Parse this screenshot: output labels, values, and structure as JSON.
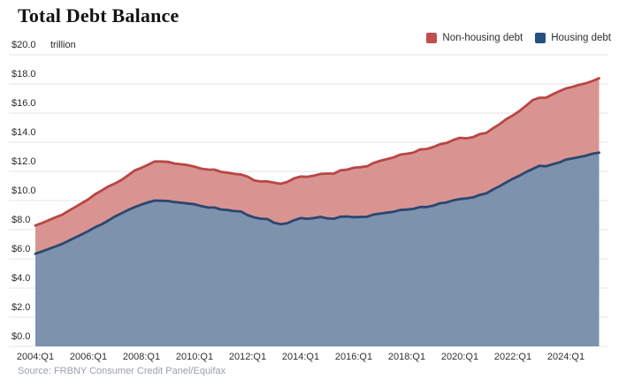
{
  "title": "Total Debt Balance",
  "legend": {
    "items": [
      {
        "label": "Non-housing debt",
        "color": "#c0504d"
      },
      {
        "label": "Housing debt",
        "color": "#27507f"
      }
    ]
  },
  "source": "Source: FRBNY Consumer Credit Panel/Equifax",
  "y_axis": {
    "unit_label": "trillion",
    "min": 0,
    "max": 20,
    "step": 2,
    "tick_labels": [
      "$0.0",
      "$2.0",
      "$4.0",
      "$6.0",
      "$8.0",
      "$10.0",
      "$12.0",
      "$14.0",
      "$16.0",
      "$18.0",
      "$20.0"
    ]
  },
  "x_axis": {
    "tick_labels": [
      "2004:Q1",
      "2006:Q1",
      "2008:Q1",
      "2010:Q1",
      "2012:Q1",
      "2014:Q1",
      "2016:Q1",
      "2018:Q1",
      "2020:Q1",
      "2022:Q1",
      "2024:Q1"
    ]
  },
  "chart_data": {
    "type": "area",
    "stacked": true,
    "frequency": "quarterly",
    "title": "Total Debt Balance",
    "ylabel": "$ trillion",
    "ylim": [
      0,
      20
    ],
    "grid": true,
    "legend_position": "top-right",
    "quarters": [
      "2004:Q1",
      "2004:Q2",
      "2004:Q3",
      "2004:Q4",
      "2005:Q1",
      "2005:Q2",
      "2005:Q3",
      "2005:Q4",
      "2006:Q1",
      "2006:Q2",
      "2006:Q3",
      "2006:Q4",
      "2007:Q1",
      "2007:Q2",
      "2007:Q3",
      "2007:Q4",
      "2008:Q1",
      "2008:Q2",
      "2008:Q3",
      "2008:Q4",
      "2009:Q1",
      "2009:Q2",
      "2009:Q3",
      "2009:Q4",
      "2010:Q1",
      "2010:Q2",
      "2010:Q3",
      "2010:Q4",
      "2011:Q1",
      "2011:Q2",
      "2011:Q3",
      "2011:Q4",
      "2012:Q1",
      "2012:Q2",
      "2012:Q3",
      "2012:Q4",
      "2013:Q1",
      "2013:Q2",
      "2013:Q3",
      "2013:Q4",
      "2014:Q1",
      "2014:Q2",
      "2014:Q3",
      "2014:Q4",
      "2015:Q1",
      "2015:Q2",
      "2015:Q3",
      "2015:Q4",
      "2016:Q1",
      "2016:Q2",
      "2016:Q3",
      "2016:Q4",
      "2017:Q1",
      "2017:Q2",
      "2017:Q3",
      "2017:Q4",
      "2018:Q1",
      "2018:Q2",
      "2018:Q3",
      "2018:Q4",
      "2019:Q1",
      "2019:Q2",
      "2019:Q3",
      "2019:Q4",
      "2020:Q1",
      "2020:Q2",
      "2020:Q3",
      "2020:Q4",
      "2021:Q1",
      "2021:Q2",
      "2021:Q3",
      "2021:Q4",
      "2022:Q1",
      "2022:Q2",
      "2022:Q3",
      "2022:Q4",
      "2023:Q1",
      "2023:Q2",
      "2023:Q3",
      "2023:Q4",
      "2024:Q1",
      "2024:Q2",
      "2024:Q3",
      "2024:Q4",
      "2025:Q1",
      "2025:Q2"
    ],
    "series": [
      {
        "name": "Housing debt",
        "fill_color": "#7d92ac",
        "line_color": "#2a476f",
        "values": [
          6.35,
          6.51,
          6.68,
          6.85,
          7.02,
          7.24,
          7.46,
          7.68,
          7.91,
          8.17,
          8.37,
          8.63,
          8.91,
          9.13,
          9.36,
          9.56,
          9.73,
          9.88,
          10.0,
          9.99,
          9.97,
          9.9,
          9.85,
          9.8,
          9.75,
          9.62,
          9.53,
          9.52,
          9.39,
          9.35,
          9.28,
          9.25,
          9.0,
          8.84,
          8.76,
          8.73,
          8.48,
          8.38,
          8.45,
          8.65,
          8.8,
          8.75,
          8.8,
          8.88,
          8.78,
          8.75,
          8.89,
          8.91,
          8.86,
          8.88,
          8.89,
          9.04,
          9.11,
          9.17,
          9.23,
          9.35,
          9.38,
          9.43,
          9.56,
          9.56,
          9.65,
          9.81,
          9.87,
          10.01,
          10.1,
          10.15,
          10.22,
          10.39,
          10.5,
          10.76,
          10.99,
          11.25,
          11.5,
          11.71,
          11.96,
          12.17,
          12.39,
          12.35,
          12.49,
          12.61,
          12.81,
          12.89,
          12.99,
          13.08,
          13.21,
          13.29
        ]
      },
      {
        "name": "Non-housing debt",
        "fill_color": "#d99492",
        "line_color": "#b94644",
        "values": [
          1.94,
          1.95,
          1.97,
          1.99,
          2.0,
          2.05,
          2.1,
          2.14,
          2.18,
          2.26,
          2.32,
          2.34,
          2.26,
          2.29,
          2.38,
          2.51,
          2.52,
          2.58,
          2.68,
          2.69,
          2.69,
          2.64,
          2.64,
          2.63,
          2.58,
          2.57,
          2.6,
          2.6,
          2.58,
          2.56,
          2.55,
          2.54,
          2.64,
          2.54,
          2.55,
          2.58,
          2.75,
          2.77,
          2.83,
          2.87,
          2.85,
          2.88,
          2.91,
          2.95,
          3.07,
          3.1,
          3.18,
          3.21,
          3.39,
          3.41,
          3.46,
          3.54,
          3.62,
          3.67,
          3.73,
          3.8,
          3.83,
          3.86,
          3.95,
          3.98,
          4.02,
          4.05,
          4.08,
          4.14,
          4.2,
          4.12,
          4.13,
          4.17,
          4.14,
          4.2,
          4.25,
          4.33,
          4.34,
          4.44,
          4.55,
          4.73,
          4.66,
          4.71,
          4.8,
          4.89,
          4.88,
          4.91,
          4.95,
          4.96,
          4.99,
          5.1
        ]
      }
    ],
    "totals": [
      8.29,
      8.46,
      8.65,
      8.84,
      9.02,
      9.29,
      9.56,
      9.82,
      10.09,
      10.43,
      10.69,
      10.97,
      11.17,
      11.42,
      11.74,
      12.07,
      12.25,
      12.46,
      12.68,
      12.68,
      12.66,
      12.54,
      12.49,
      12.43,
      12.33,
      12.19,
      12.13,
      12.12,
      11.97,
      11.91,
      11.83,
      11.79,
      11.64,
      11.38,
      11.31,
      11.31,
      11.23,
      11.15,
      11.28,
      11.52,
      11.65,
      11.63,
      11.71,
      11.83,
      11.85,
      11.85,
      12.07,
      12.12,
      12.25,
      12.29,
      12.35,
      12.58,
      12.73,
      12.84,
      12.96,
      13.15,
      13.21,
      13.29,
      13.51,
      13.54,
      13.67,
      13.86,
      13.95,
      14.15,
      14.3,
      14.27,
      14.35,
      14.56,
      14.64,
      14.96,
      15.24,
      15.58,
      15.84,
      16.15,
      16.51,
      16.9,
      17.05,
      17.06,
      17.29,
      17.5,
      17.69,
      17.8,
      17.94,
      18.04,
      18.2,
      18.39
    ]
  }
}
